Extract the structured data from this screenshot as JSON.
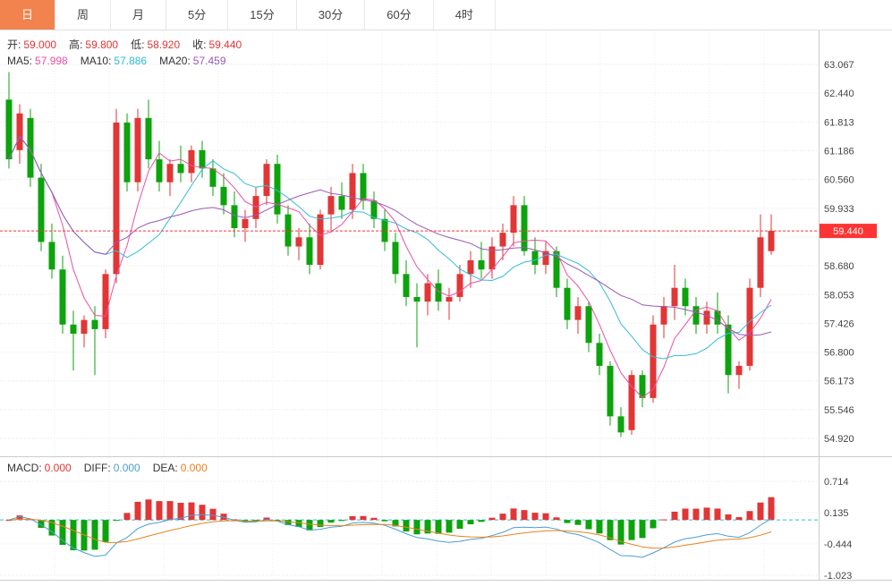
{
  "tabs": [
    {
      "label": "日",
      "name": "tab-day",
      "active": true
    },
    {
      "label": "周",
      "name": "tab-week",
      "active": false
    },
    {
      "label": "月",
      "name": "tab-month",
      "active": false
    },
    {
      "label": "5分",
      "name": "tab-5min",
      "active": false
    },
    {
      "label": "15分",
      "name": "tab-15min",
      "active": false
    },
    {
      "label": "30分",
      "name": "tab-30min",
      "active": false
    },
    {
      "label": "60分",
      "name": "tab-60min",
      "active": false
    },
    {
      "label": "4时",
      "name": "tab-4hour",
      "active": false
    }
  ],
  "legend_ohlc": {
    "open_label": "开:",
    "open": "59.000",
    "high_label": "高:",
    "high": "59.800",
    "low_label": "低:",
    "low": "58.920",
    "close_label": "收:",
    "close": "59.440"
  },
  "legend_ma": {
    "ma5_label": "MA5:",
    "ma5": "57.998",
    "ma10_label": "MA10:",
    "ma10": "57.886",
    "ma20_label": "MA20:",
    "ma20": "57.459"
  },
  "legend_macd": {
    "macd_label": "MACD:",
    "macd": "0.000",
    "diff_label": "DIFF:",
    "diff": "0.000",
    "dea_label": "DEA:",
    "dea": "0.000"
  },
  "price_tag": {
    "label": "59.440",
    "price": 59.44
  },
  "colors": {
    "up": "#e23535",
    "down": "#0ca30c",
    "ma5": "#ed4fa5",
    "ma10": "#35bdd8",
    "ma20": "#9b59b6",
    "diff": "#4a9fd4",
    "dea": "#e8821e",
    "marker": "#fe3333",
    "zero_line": "#2ebcd4",
    "active_tab": "#f2824e",
    "axis_text": "#444444"
  },
  "chart_data": {
    "type": "candlestick",
    "title": "Daily candlestick chart with MA5/MA10/MA20 overlays and MACD sub-chart",
    "last": {
      "open": 59.0,
      "high": 59.8,
      "low": 58.92,
      "close": 59.44
    },
    "y_axis": {
      "ticks": [
        63.067,
        62.44,
        61.813,
        61.186,
        60.56,
        59.933,
        58.68,
        58.053,
        57.426,
        56.8,
        56.173,
        55.546,
        54.92
      ],
      "unlabeled_ticks": [
        59.306
      ],
      "min": 54.92,
      "max": 63.067
    },
    "candles": [
      [
        62.3,
        62.9,
        60.8,
        61.0
      ],
      [
        61.2,
        62.2,
        60.9,
        62.0
      ],
      [
        61.9,
        62.1,
        60.4,
        60.6
      ],
      [
        60.6,
        60.9,
        59.0,
        59.2
      ],
      [
        59.2,
        59.6,
        58.4,
        58.6
      ],
      [
        58.6,
        58.9,
        57.2,
        57.4
      ],
      [
        57.4,
        57.7,
        56.4,
        57.2
      ],
      [
        57.2,
        57.6,
        56.9,
        57.5
      ],
      [
        57.5,
        57.8,
        56.3,
        57.3
      ],
      [
        57.3,
        58.6,
        57.1,
        58.5
      ],
      [
        58.5,
        62.1,
        58.3,
        61.8
      ],
      [
        61.8,
        62.0,
        60.3,
        60.5
      ],
      [
        60.5,
        62.1,
        60.3,
        61.9
      ],
      [
        61.9,
        62.3,
        60.8,
        61.0
      ],
      [
        61.0,
        61.4,
        60.3,
        60.5
      ],
      [
        60.5,
        61.0,
        60.2,
        60.9
      ],
      [
        60.9,
        61.3,
        60.5,
        60.7
      ],
      [
        60.7,
        61.3,
        60.5,
        61.2
      ],
      [
        61.2,
        61.4,
        60.6,
        60.8
      ],
      [
        60.8,
        61.0,
        60.2,
        60.4
      ],
      [
        60.4,
        60.7,
        59.8,
        60.0
      ],
      [
        60.0,
        60.3,
        59.3,
        59.5
      ],
      [
        59.5,
        59.9,
        59.2,
        59.7
      ],
      [
        59.7,
        60.4,
        59.5,
        60.2
      ],
      [
        60.2,
        61.0,
        60.0,
        60.9
      ],
      [
        60.9,
        61.1,
        59.6,
        59.8
      ],
      [
        59.8,
        60.0,
        58.9,
        59.1
      ],
      [
        59.1,
        59.5,
        58.8,
        59.3
      ],
      [
        59.3,
        59.6,
        58.5,
        58.7
      ],
      [
        58.7,
        59.9,
        58.6,
        59.8
      ],
      [
        59.8,
        60.4,
        59.4,
        60.2
      ],
      [
        60.2,
        60.5,
        59.7,
        59.9
      ],
      [
        59.9,
        60.9,
        59.7,
        60.7
      ],
      [
        60.7,
        60.9,
        59.9,
        60.1
      ],
      [
        60.1,
        60.3,
        59.5,
        59.7
      ],
      [
        59.7,
        59.9,
        59.0,
        59.2
      ],
      [
        59.2,
        59.4,
        58.3,
        58.5
      ],
      [
        58.5,
        58.8,
        57.8,
        58.0
      ],
      [
        58.0,
        58.3,
        56.9,
        57.9
      ],
      [
        57.9,
        58.5,
        57.6,
        58.3
      ],
      [
        58.3,
        58.6,
        57.7,
        57.9
      ],
      [
        57.9,
        58.2,
        57.5,
        58.0
      ],
      [
        58.0,
        58.7,
        57.9,
        58.5
      ],
      [
        58.5,
        59.0,
        58.2,
        58.8
      ],
      [
        58.8,
        59.2,
        58.4,
        58.6
      ],
      [
        58.6,
        59.3,
        58.4,
        59.1
      ],
      [
        59.1,
        59.6,
        58.8,
        59.4
      ],
      [
        59.4,
        60.2,
        59.1,
        60.0
      ],
      [
        60.0,
        60.2,
        58.9,
        59.0
      ],
      [
        59.0,
        59.3,
        58.5,
        58.7
      ],
      [
        58.7,
        59.2,
        58.5,
        59.0
      ],
      [
        59.0,
        59.1,
        58.0,
        58.2
      ],
      [
        58.2,
        58.4,
        57.3,
        57.5
      ],
      [
        57.5,
        58.0,
        57.2,
        57.8
      ],
      [
        57.8,
        57.9,
        56.8,
        57.0
      ],
      [
        57.0,
        57.2,
        56.3,
        56.5
      ],
      [
        56.5,
        56.6,
        55.2,
        55.4
      ],
      [
        55.4,
        55.6,
        54.95,
        55.05
      ],
      [
        55.1,
        56.4,
        55.0,
        56.3
      ],
      [
        56.3,
        56.4,
        55.6,
        55.8
      ],
      [
        55.8,
        57.6,
        55.7,
        57.4
      ],
      [
        57.4,
        58.0,
        57.1,
        57.8
      ],
      [
        57.8,
        58.7,
        57.5,
        58.2
      ],
      [
        58.2,
        58.4,
        57.6,
        57.8
      ],
      [
        57.8,
        58.0,
        57.2,
        57.4
      ],
      [
        57.4,
        57.9,
        57.2,
        57.7
      ],
      [
        57.7,
        58.1,
        57.2,
        57.4
      ],
      [
        57.4,
        57.6,
        55.9,
        56.3
      ],
      [
        56.3,
        56.6,
        56.0,
        56.5
      ],
      [
        56.5,
        58.4,
        56.4,
        58.2
      ],
      [
        58.2,
        59.8,
        58.0,
        59.3
      ],
      [
        59.0,
        59.8,
        58.92,
        59.44
      ]
    ],
    "ma_periods": [
      5,
      10,
      20
    ],
    "macd": {
      "ticks": [
        0.714,
        0.135,
        -0.444,
        -1.023
      ],
      "params": [
        12,
        26,
        9
      ]
    }
  }
}
